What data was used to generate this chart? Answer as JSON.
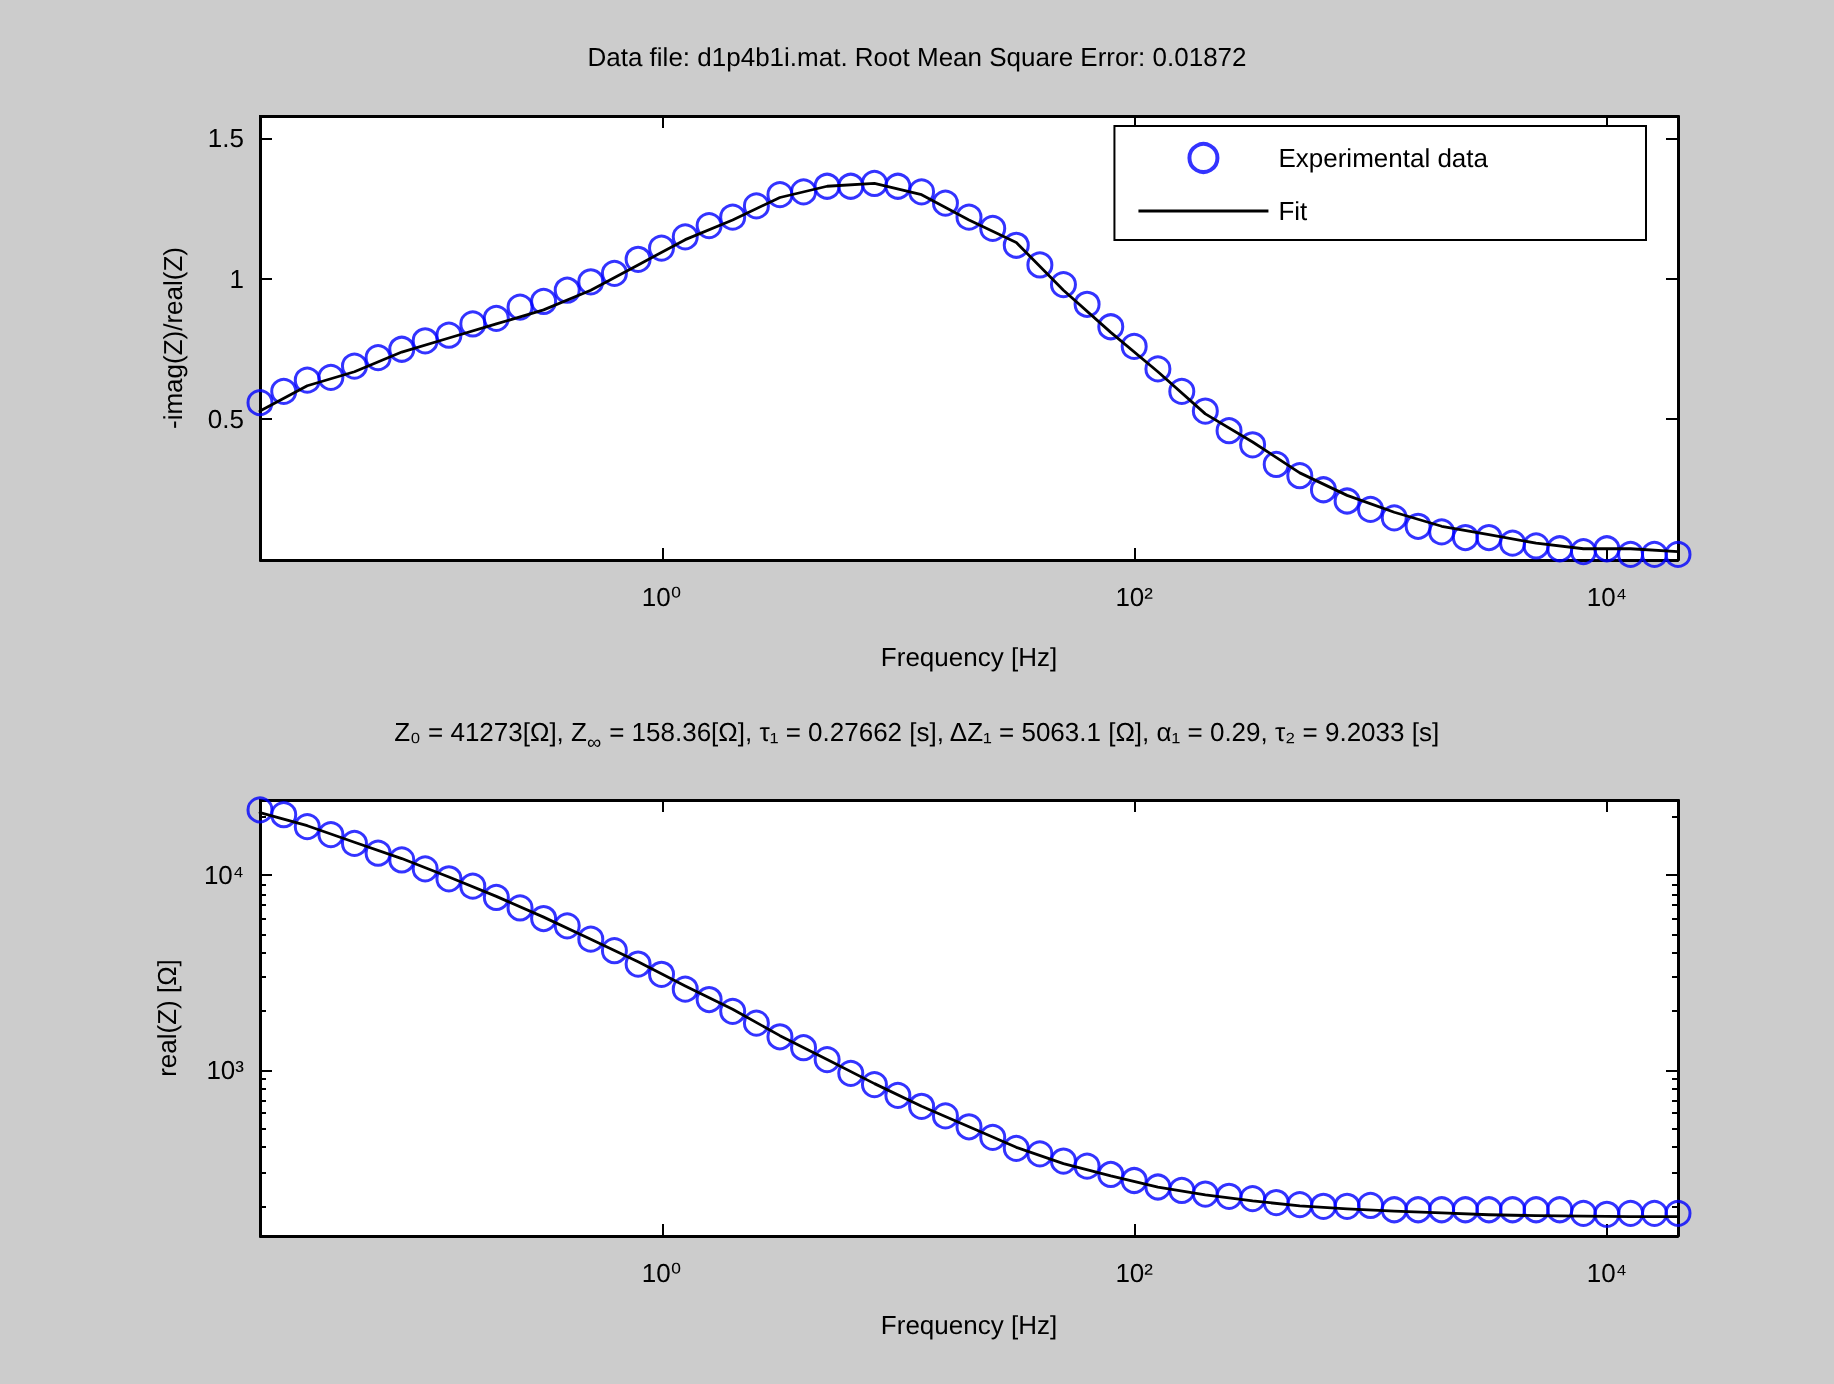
{
  "chart_data": [
    {
      "type": "scatter",
      "title": "Data file: d1p4b1i.mat. Root Mean Square Error: 0.01872",
      "xlabel": "Frequency [Hz]",
      "ylabel": "-imag(Z)/real(Z)",
      "log": "x",
      "legend": "top right",
      "xlim": [
        0.02,
        20000
      ],
      "xticks": [
        {
          "value": 1,
          "label": "10⁰"
        },
        {
          "value": 100,
          "label": "10²"
        },
        {
          "value": 10000,
          "label": "10⁴"
        }
      ],
      "ylim": [
        0,
        1.58
      ],
      "yticks": [
        0.5,
        1,
        1.5
      ],
      "x": [
        0.02,
        0.0252,
        0.0317,
        0.0399,
        0.0502,
        0.0632,
        0.0796,
        0.1,
        0.126,
        0.159,
        0.2,
        0.252,
        0.317,
        0.399,
        0.502,
        0.632,
        0.796,
        1,
        1.26,
        1.59,
        2,
        2.52,
        3.17,
        3.99,
        5.02,
        6.32,
        7.96,
        10,
        12.6,
        15.9,
        20,
        25.2,
        31.7,
        39.9,
        50.2,
        63.2,
        79.6,
        100,
        126,
        159,
        200,
        252,
        317,
        399,
        502,
        632,
        796,
        1000,
        1260,
        1590,
        2000,
        2520,
        3170,
        3990,
        5020,
        6320,
        7960,
        10000,
        12600,
        15900,
        20000
      ],
      "series": [
        {
          "name": "Experimental data",
          "marker": "circle",
          "color": "#0000ff",
          "values": [
            0.56,
            0.6,
            0.64,
            0.65,
            0.69,
            0.72,
            0.75,
            0.78,
            0.8,
            0.84,
            0.86,
            0.9,
            0.92,
            0.96,
            0.99,
            1.02,
            1.07,
            1.11,
            1.15,
            1.19,
            1.22,
            1.26,
            1.3,
            1.31,
            1.33,
            1.33,
            1.34,
            1.33,
            1.31,
            1.27,
            1.22,
            1.18,
            1.12,
            1.05,
            0.98,
            0.91,
            0.83,
            0.76,
            0.68,
            0.6,
            0.53,
            0.46,
            0.41,
            0.34,
            0.3,
            0.25,
            0.21,
            0.18,
            0.15,
            0.12,
            0.1,
            0.08,
            0.08,
            0.06,
            0.05,
            0.04,
            0.03,
            0.04,
            0.02,
            0.02,
            0.02
          ]
        },
        {
          "name": "Fit",
          "type": "line",
          "marker": "none",
          "line_style": "solid",
          "color": "#000000",
          "x": [
            0.02,
            0.0317,
            0.0502,
            0.0796,
            0.126,
            0.2,
            0.317,
            0.502,
            0.796,
            1.26,
            2,
            3.17,
            5.02,
            7.96,
            12.6,
            20,
            31.7,
            50.2,
            79.6,
            126,
            200,
            317,
            502,
            796,
            1260,
            2000,
            3170,
            5020,
            7960,
            12600,
            20000
          ],
          "values": [
            0.53,
            0.62,
            0.67,
            0.74,
            0.79,
            0.84,
            0.89,
            0.96,
            1.05,
            1.14,
            1.21,
            1.29,
            1.33,
            1.34,
            1.3,
            1.21,
            1.13,
            0.96,
            0.81,
            0.67,
            0.52,
            0.42,
            0.31,
            0.23,
            0.17,
            0.12,
            0.09,
            0.06,
            0.04,
            0.04,
            0.03
          ]
        }
      ]
    },
    {
      "type": "scatter",
      "title": "Z₀ = 41273[Ω], Z$_{∞}$ = 158.36[Ω], τ₁ = 0.27662 [s], ΔZ₁ = 5063.1 [Ω], α₁ = 0.29, τ₂ = 9.2033 [s]",
      "xlabel": "Frequency [Hz]",
      "ylabel": "real(Z) [Ω]",
      "log": "xy",
      "xlim": [
        0.02,
        20000
      ],
      "xticks": [
        {
          "value": 1,
          "label": "10⁰"
        },
        {
          "value": 100,
          "label": "10²"
        },
        {
          "value": 10000,
          "label": "10⁴"
        }
      ],
      "ylim": [
        140,
        24400
      ],
      "yticks": [
        {
          "value": 200,
          "label": null
        },
        {
          "value": 300,
          "label": null
        },
        {
          "value": 400,
          "label": null
        },
        {
          "value": 500,
          "label": null
        },
        {
          "value": 600,
          "label": null
        },
        {
          "value": 700,
          "label": null
        },
        {
          "value": 800,
          "label": null
        },
        {
          "value": 900,
          "label": null
        },
        {
          "value": 1000,
          "label": "10³"
        },
        {
          "value": 2000,
          "label": null
        },
        {
          "value": 3000,
          "label": null
        },
        {
          "value": 4000,
          "label": null
        },
        {
          "value": 5000,
          "label": null
        },
        {
          "value": 6000,
          "label": null
        },
        {
          "value": 7000,
          "label": null
        },
        {
          "value": 8000,
          "label": null
        },
        {
          "value": 9000,
          "label": null
        },
        {
          "value": 10000,
          "label": "10⁴"
        },
        {
          "value": 20000,
          "label": null
        }
      ],
      "x": [
        0.02,
        0.0252,
        0.0317,
        0.0399,
        0.0502,
        0.0632,
        0.0796,
        0.1,
        0.126,
        0.159,
        0.2,
        0.252,
        0.317,
        0.399,
        0.502,
        0.632,
        0.796,
        1,
        1.26,
        1.59,
        2,
        2.52,
        3.17,
        3.99,
        5.02,
        6.32,
        7.96,
        10,
        12.6,
        15.9,
        20,
        25.2,
        31.7,
        39.9,
        50.2,
        63.2,
        79.6,
        100,
        126,
        159,
        200,
        252,
        317,
        399,
        502,
        632,
        796,
        1000,
        1260,
        1590,
        2000,
        2520,
        3170,
        3990,
        5020,
        6320,
        7960,
        10000,
        12600,
        15900,
        20000
      ],
      "series": [
        {
          "marker": "circle",
          "color": "#0000ff",
          "values": [
            21700,
            20500,
            17800,
            16200,
            14600,
            13000,
            12000,
            10800,
            9600,
            8800,
            7700,
            6800,
            6000,
            5500,
            4700,
            4100,
            3500,
            3100,
            2600,
            2300,
            2000,
            1740,
            1480,
            1300,
            1130,
            960,
            840,
            740,
            650,
            580,
            510,
            450,
            395,
            370,
            340,
            320,
            290,
            270,
            250,
            240,
            230,
            224,
            218,
            208,
            203,
            199,
            199,
            201,
            191,
            191,
            191,
            191,
            191,
            191,
            191,
            191,
            183,
            181,
            183,
            183,
            183
          ]
        },
        {
          "type": "line",
          "marker": "none",
          "line_style": "solid",
          "color": "#000000",
          "x": [
            0.02,
            0.0317,
            0.0502,
            0.0796,
            0.126,
            0.2,
            0.317,
            0.502,
            0.796,
            1.26,
            2,
            3.17,
            5.02,
            7.96,
            12.6,
            20,
            31.7,
            50.2,
            79.6,
            126,
            200,
            317,
            502,
            796,
            1260,
            2000,
            3170,
            5020,
            7960,
            12600,
            20000
          ],
          "values": [
            21000,
            18000,
            14800,
            12200,
            9800,
            7800,
            6100,
            4700,
            3600,
            2700,
            2050,
            1500,
            1130,
            850,
            650,
            510,
            400,
            330,
            285,
            250,
            228,
            212,
            200,
            193,
            188,
            184,
            180,
            178,
            177,
            176,
            176
          ]
        }
      ]
    }
  ]
}
